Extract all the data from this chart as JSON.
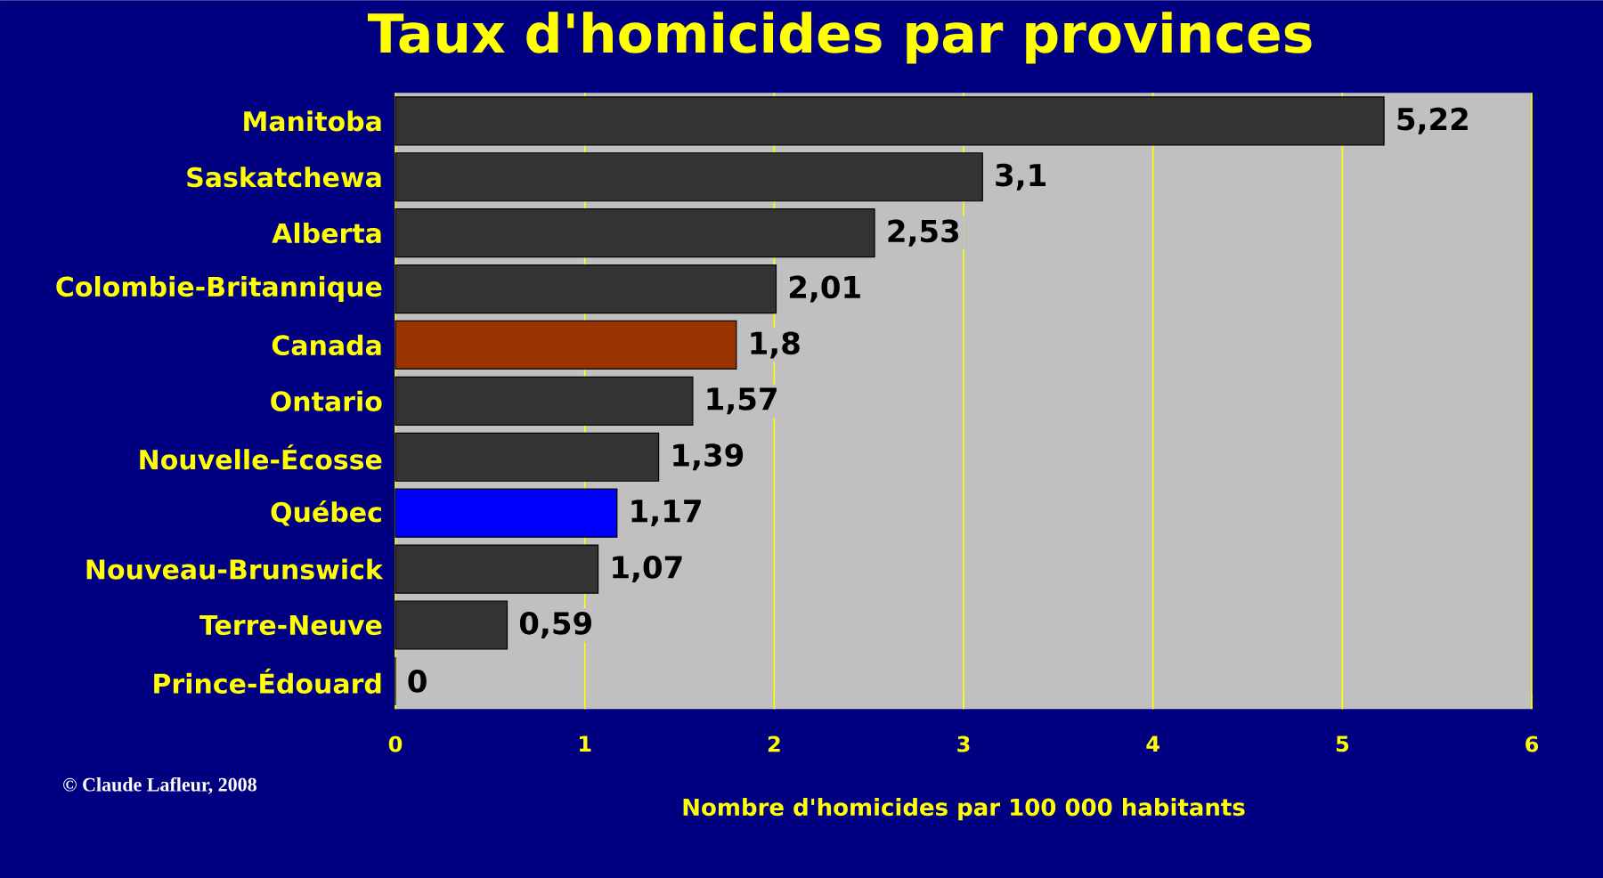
{
  "chart_data": {
    "type": "bar",
    "orientation": "horizontal",
    "title": "Taux d'homicides par provinces",
    "xlabel": "Nombre d'homicides par 100 000 habitants",
    "categories": [
      "Manitoba",
      "Saskatchewa",
      "Alberta",
      "Colombie-Britannique",
      "Canada",
      "Ontario",
      "Nouvelle-Écosse",
      "Québec",
      "Nouveau-Brunswick",
      "Terre-Neuve",
      "Prince-Édouard"
    ],
    "values": [
      5.22,
      3.1,
      2.53,
      2.01,
      1.8,
      1.57,
      1.39,
      1.17,
      1.07,
      0.59,
      0
    ],
    "colors": [
      "#333333",
      "#333333",
      "#333333",
      "#333333",
      "#993300",
      "#333333",
      "#333333",
      "#0000ff",
      "#333333",
      "#333333",
      "#333333"
    ],
    "value_labels": [
      "5,22",
      "3,1",
      "2,53",
      "2,01",
      "1,8",
      "1,57",
      "1,39",
      "1,17",
      "1,07",
      "0,59",
      "0"
    ],
    "xlim": [
      0,
      6
    ],
    "xticks": [
      0,
      1,
      2,
      3,
      4,
      5,
      6
    ],
    "grid": "x",
    "annotations": [
      "© Claude Lafleur, 2008"
    ]
  }
}
